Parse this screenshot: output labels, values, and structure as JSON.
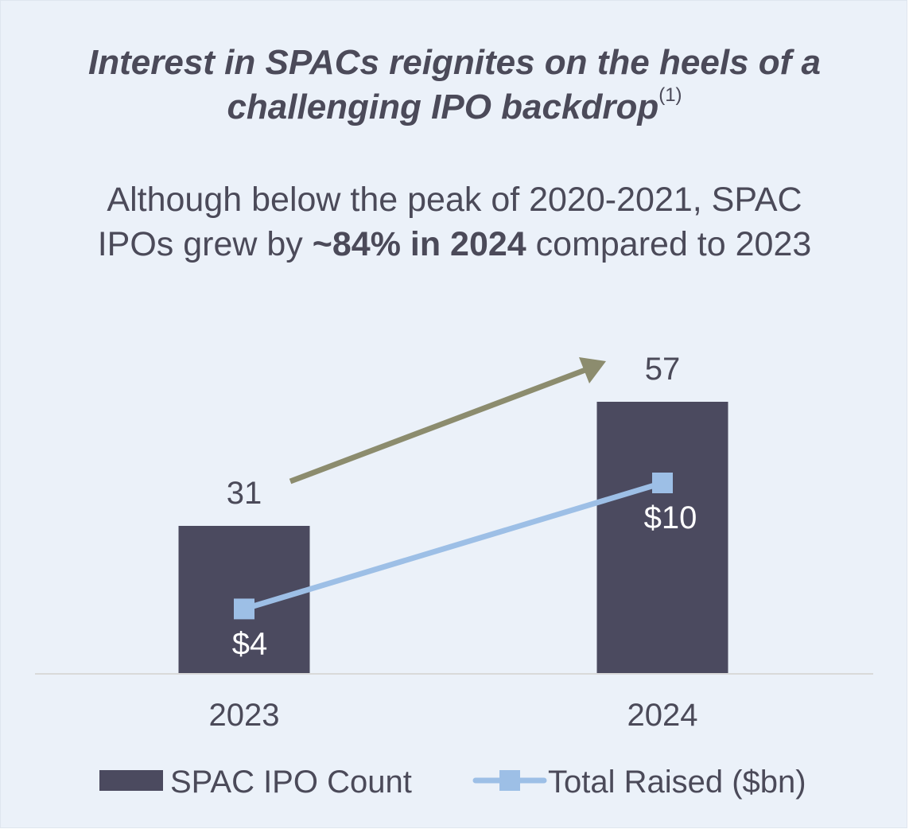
{
  "title": {
    "text": "Interest in SPACs reignites on the heels of a challenging IPO backdrop",
    "line1": "Interest in SPACs reignites on the heels of a",
    "line2": "challenging IPO backdrop",
    "footnote": "(1)"
  },
  "subtitle": {
    "line1": "Although below the peak of 2020-2021, SPAC",
    "line2_before": "IPOs grew by ",
    "line2_bold": "~84% in 2024",
    "line2_after": " compared to 2023"
  },
  "colors": {
    "background": "#ebf1f9",
    "bar": "#4b4a5f",
    "line": "#9dbfe6",
    "arrow": "#8c8c6e",
    "axis": "#d9d9d9",
    "text": "#4b4a59"
  },
  "chart_data": {
    "type": "bar",
    "categories": [
      "2023",
      "2024"
    ],
    "series": [
      {
        "name": "SPAC IPO Count",
        "type": "bar",
        "values": [
          31,
          57
        ],
        "labels": [
          "31",
          "57"
        ]
      },
      {
        "name": "Total Raised ($bn)",
        "type": "line",
        "marker": "square",
        "values": [
          4,
          10
        ],
        "labels": [
          "$4",
          "$10"
        ]
      }
    ],
    "growth_arrow": true,
    "legend_position": "bottom",
    "grid": false
  }
}
